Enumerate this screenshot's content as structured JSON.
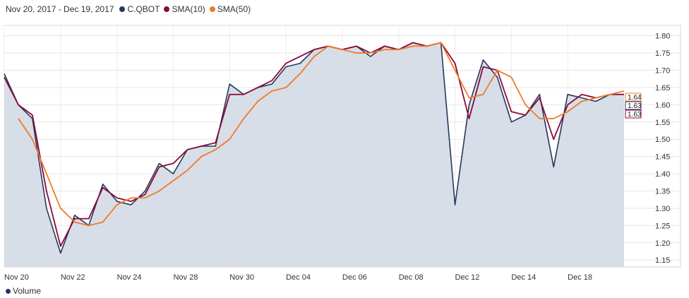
{
  "legend": {
    "date_range": "Nov 20, 2017 - Dec 19, 2017",
    "series": [
      {
        "label": "C.QBOT",
        "color": "#24395c"
      },
      {
        "label": "SMA(10)",
        "color": "#8b0a3a"
      },
      {
        "label": "SMA(50)",
        "color": "#ee7b2b"
      }
    ]
  },
  "volume_legend": {
    "label": "Volume",
    "color": "#24395c"
  },
  "chart_data": {
    "type": "line",
    "title": "",
    "xlabel": "",
    "ylabel": "",
    "ylim": [
      1.13,
      1.83
    ],
    "y_ticks": [
      "1.15",
      "1.20",
      "1.25",
      "1.30",
      "1.35",
      "1.40",
      "1.45",
      "1.50",
      "1.55",
      "1.60",
      "1.65",
      "1.70",
      "1.75",
      "1.80"
    ],
    "x_ticks": [
      "Nov 20",
      "Nov 22",
      "Nov 24",
      "Nov 28",
      "Nov 30",
      "Dec 04",
      "Dec 06",
      "Dec 08",
      "Dec 12",
      "Dec 14",
      "Dec 18"
    ],
    "grid": true,
    "last_values": [
      "1.64",
      "1.63",
      "1.63"
    ],
    "x": [
      0,
      0.25,
      0.5,
      0.75,
      1.0,
      1.25,
      1.5,
      1.75,
      2.0,
      2.25,
      2.5,
      2.75,
      3.0,
      3.25,
      3.5,
      3.75,
      4.0,
      4.25,
      4.5,
      4.75,
      5.0,
      5.25,
      5.5,
      5.75,
      6.0,
      6.25,
      6.5,
      6.75,
      7.0,
      7.25,
      7.5,
      7.75,
      8.0,
      8.25,
      8.5,
      8.75,
      9.0,
      9.25,
      9.5,
      9.75,
      10.0,
      10.25,
      10.5,
      10.75,
      11.0
    ],
    "series": [
      {
        "name": "C.QBOT",
        "color": "#24395c",
        "values": [
          1.69,
          1.6,
          1.56,
          1.3,
          1.17,
          1.28,
          1.25,
          1.37,
          1.32,
          1.31,
          1.35,
          1.43,
          1.4,
          1.47,
          1.48,
          1.48,
          1.66,
          1.63,
          1.65,
          1.66,
          1.71,
          1.72,
          1.76,
          1.77,
          1.76,
          1.77,
          1.74,
          1.77,
          1.76,
          1.78,
          1.77,
          1.78,
          1.31,
          1.6,
          1.73,
          1.68,
          1.55,
          1.57,
          1.63,
          1.42,
          1.63,
          1.62,
          1.61,
          1.63,
          1.63
        ]
      },
      {
        "name": "SMA(10)",
        "color": "#8b0a3a",
        "values": [
          1.68,
          1.6,
          1.57,
          1.35,
          1.19,
          1.27,
          1.27,
          1.36,
          1.33,
          1.32,
          1.34,
          1.42,
          1.43,
          1.47,
          1.48,
          1.49,
          1.63,
          1.63,
          1.65,
          1.67,
          1.72,
          1.74,
          1.76,
          1.77,
          1.76,
          1.77,
          1.75,
          1.77,
          1.76,
          1.78,
          1.77,
          1.78,
          1.72,
          1.56,
          1.71,
          1.7,
          1.58,
          1.57,
          1.62,
          1.5,
          1.6,
          1.63,
          1.62,
          1.63,
          1.63
        ]
      },
      {
        "name": "SMA(50)",
        "color": "#ee7b2b",
        "values": [
          null,
          1.56,
          1.5,
          1.4,
          1.3,
          1.26,
          1.25,
          1.26,
          1.31,
          1.33,
          1.33,
          1.35,
          1.38,
          1.41,
          1.45,
          1.47,
          1.5,
          1.56,
          1.61,
          1.64,
          1.65,
          1.69,
          1.74,
          1.77,
          1.76,
          1.75,
          1.75,
          1.76,
          1.76,
          1.77,
          1.77,
          1.78,
          1.7,
          1.62,
          1.63,
          1.7,
          1.68,
          1.6,
          1.56,
          1.56,
          1.58,
          1.61,
          1.62,
          1.63,
          1.64
        ]
      }
    ]
  }
}
